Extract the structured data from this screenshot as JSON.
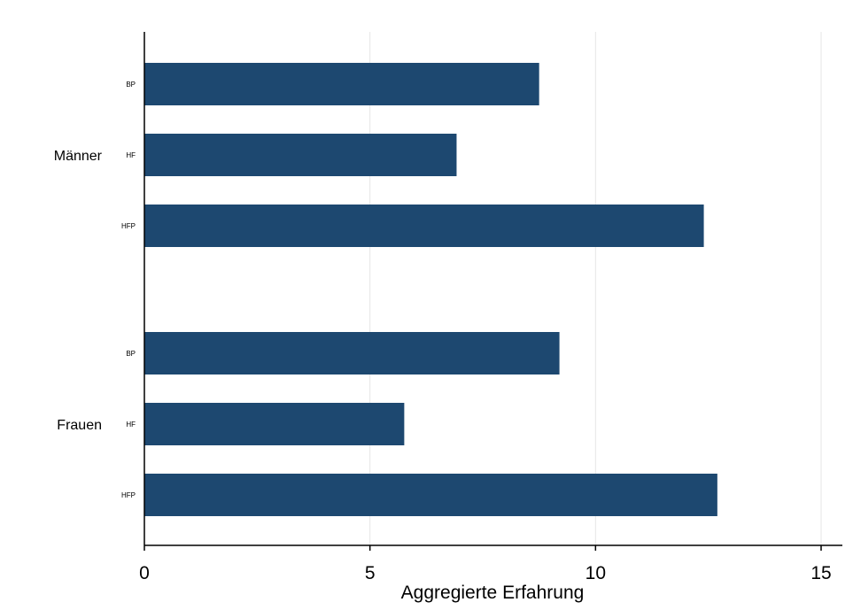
{
  "chart_data": {
    "type": "bar",
    "orientation": "horizontal",
    "xlabel": "Aggregierte Erfahrung",
    "ylabel": "",
    "xlim": [
      0,
      15
    ],
    "xticks": [
      0,
      5,
      10,
      15
    ],
    "grid": true,
    "bar_color": "#1d4870",
    "groups": [
      {
        "name": "Männer",
        "categories": [
          "BP",
          "HF",
          "HFP"
        ],
        "values": [
          8.75,
          6.92,
          12.4
        ]
      },
      {
        "name": "Frauen",
        "categories": [
          "BP",
          "HF",
          "HFP"
        ],
        "values": [
          9.2,
          5.76,
          12.7
        ]
      }
    ]
  }
}
